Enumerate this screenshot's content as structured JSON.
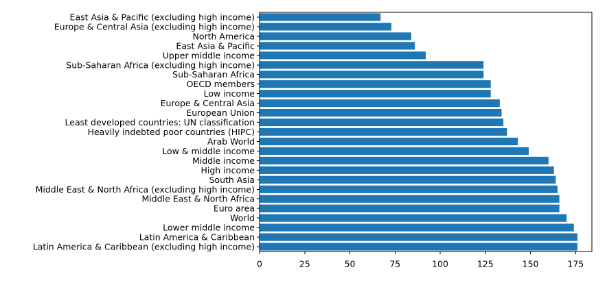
{
  "chart_data": {
    "type": "bar",
    "orientation": "horizontal",
    "title": "",
    "xlabel": "",
    "ylabel": "",
    "xlim": [
      0,
      184
    ],
    "xticks": [
      0,
      25,
      50,
      75,
      100,
      125,
      150,
      175
    ],
    "grid": false,
    "bar_color": "#1f77b4",
    "categories": [
      "Latin America & Caribbean (excluding high income)",
      "Latin America & Caribbean",
      "Lower middle income",
      "World",
      "Euro area",
      "Middle East & North Africa",
      "Middle East & North Africa (excluding high income)",
      "South Asia",
      "High income",
      "Middle income",
      "Low & middle income",
      "Arab World",
      "Heavily indebted poor countries (HIPC)",
      "Least developed countries: UN classification",
      "European Union",
      "Europe & Central Asia",
      "Low income",
      "OECD members",
      "Sub-Saharan Africa",
      "Sub-Saharan Africa (excluding high income)",
      "Upper middle income",
      "East Asia & Pacific",
      "North America",
      "Europe & Central Asia (excluding high income)",
      "East Asia & Pacific (excluding high income)"
    ],
    "values": [
      176,
      176,
      174,
      170,
      166,
      166,
      165,
      164,
      163,
      160,
      149,
      143,
      137,
      135,
      134,
      133,
      128,
      128,
      124,
      124,
      92,
      86,
      84,
      73,
      67
    ]
  }
}
